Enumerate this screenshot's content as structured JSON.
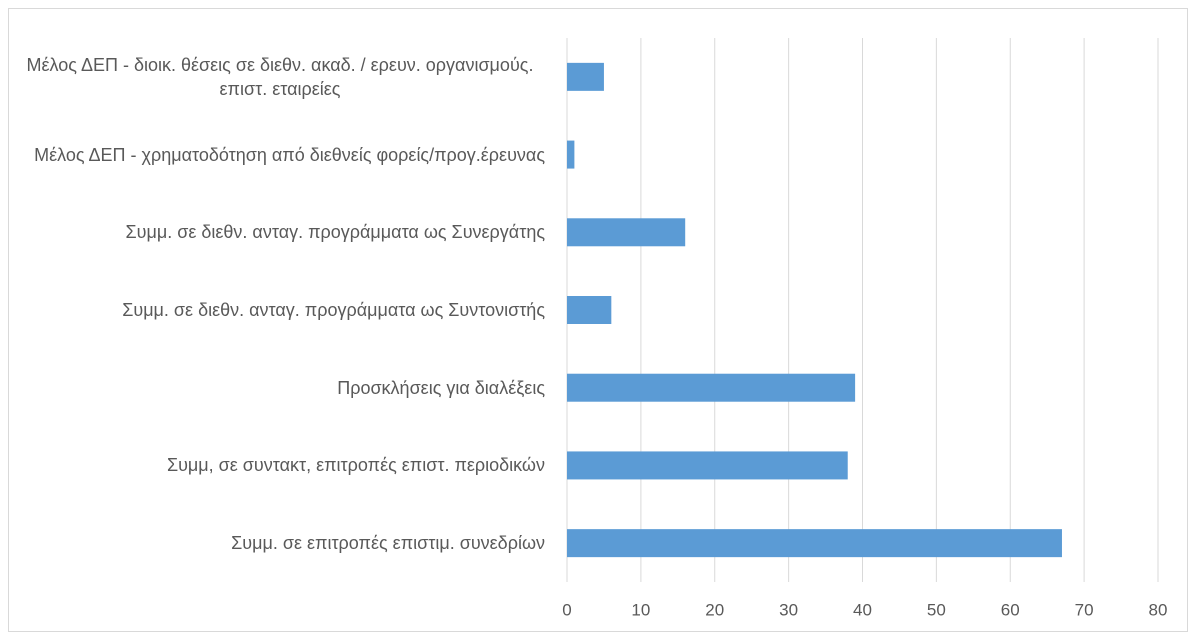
{
  "chart_data": {
    "type": "barh",
    "categories": [
      "Μέλος ΔΕΠ - διοικ. θέσεις σε διεθν. ακαδ. / ερευν. οργανισμούς. επιστ. εταιρείες",
      "Μέλος ΔΕΠ - χρηματοδότηση από διεθνείς φορείς/προγ.έρευνας",
      "Συμμ. σε διεθν. ανταγ. προγράμματα ως Συνεργάτης",
      "Συμμ. σε διεθν. ανταγ. προγράμματα ως Συντονιστής",
      "Προσκλήσεις για διαλέξεις",
      "Συμμ, σε συντακτ, επιτροπές επιστ. περιοδικών",
      "Συμμ. σε επιτροπές επιστιμ. συνεδρίων"
    ],
    "values": [
      5,
      1,
      16,
      6,
      39,
      38,
      67
    ],
    "color": "#5b9bd5",
    "xlim": [
      0,
      80
    ],
    "xticks": [
      0,
      10,
      20,
      30,
      40,
      50,
      60,
      70,
      80
    ],
    "grid": true
  }
}
